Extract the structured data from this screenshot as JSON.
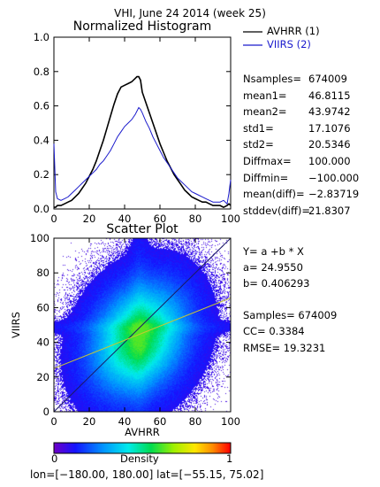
{
  "header": {
    "title": "VHI,  June 24 2014 (week 25)"
  },
  "colors": {
    "avhrr": "#000000",
    "viirs": "#1a1acc",
    "axis": "#000000"
  },
  "chart_data": [
    {
      "type": "line",
      "title": "Normalized Histogram",
      "xlim": [
        0,
        100
      ],
      "ylim": [
        0.0,
        1.0
      ],
      "x_ticks": [
        "0",
        "20",
        "40",
        "60",
        "80",
        "100"
      ],
      "y_ticks": [
        "0.0",
        "0.2",
        "0.4",
        "0.6",
        "0.8",
        "1.0"
      ],
      "x": [
        0,
        1,
        2,
        4,
        6,
        8,
        10,
        12,
        14,
        16,
        18,
        20,
        22,
        24,
        26,
        28,
        30,
        32,
        34,
        36,
        38,
        40,
        42,
        44,
        46,
        47,
        48,
        49,
        50,
        52,
        54,
        56,
        58,
        60,
        62,
        64,
        66,
        68,
        70,
        72,
        74,
        76,
        78,
        80,
        82,
        84,
        86,
        88,
        90,
        92,
        94,
        96,
        98,
        99,
        100
      ],
      "series": [
        {
          "name": "AVHRR (1)",
          "color": "#000000",
          "values": [
            0.01,
            0.01,
            0.02,
            0.02,
            0.03,
            0.04,
            0.05,
            0.07,
            0.09,
            0.12,
            0.15,
            0.19,
            0.23,
            0.28,
            0.34,
            0.4,
            0.47,
            0.54,
            0.61,
            0.67,
            0.71,
            0.72,
            0.73,
            0.74,
            0.76,
            0.77,
            0.77,
            0.75,
            0.68,
            0.62,
            0.56,
            0.5,
            0.44,
            0.38,
            0.33,
            0.28,
            0.24,
            0.2,
            0.17,
            0.14,
            0.11,
            0.09,
            0.07,
            0.06,
            0.05,
            0.04,
            0.04,
            0.03,
            0.02,
            0.02,
            0.02,
            0.01,
            0.02,
            0.03,
            0.02
          ]
        },
        {
          "name": "VIIRS (2)",
          "color": "#1a1acc",
          "values": [
            0.38,
            0.1,
            0.06,
            0.05,
            0.06,
            0.07,
            0.09,
            0.11,
            0.13,
            0.15,
            0.17,
            0.19,
            0.21,
            0.23,
            0.26,
            0.28,
            0.31,
            0.34,
            0.38,
            0.42,
            0.45,
            0.48,
            0.5,
            0.52,
            0.55,
            0.57,
            0.59,
            0.58,
            0.56,
            0.51,
            0.47,
            0.42,
            0.38,
            0.34,
            0.3,
            0.27,
            0.24,
            0.21,
            0.18,
            0.16,
            0.14,
            0.12,
            0.1,
            0.09,
            0.08,
            0.07,
            0.06,
            0.05,
            0.04,
            0.04,
            0.04,
            0.05,
            0.03,
            0.09,
            0.17
          ]
        }
      ],
      "legend_position": "right"
    },
    {
      "type": "heatmap",
      "title": "Scatter Plot",
      "xlabel": "AVHRR",
      "ylabel": "VIIRS",
      "xlim": [
        0,
        100
      ],
      "ylim": [
        0,
        100
      ],
      "x_ticks": [
        "0",
        "20",
        "40",
        "60",
        "80",
        "100"
      ],
      "y_ticks": [
        "0",
        "20",
        "40",
        "60",
        "80",
        "100"
      ],
      "density_center": [
        48,
        42
      ],
      "density_spread": [
        17,
        20
      ],
      "fit_line": {
        "a": 24.955,
        "b": 0.406293
      },
      "colorbar": {
        "label": "Density",
        "min_label": "0",
        "max_label": "1",
        "colormap": "rainbow"
      }
    }
  ],
  "hist_stats": [
    {
      "label": "Nsamples=",
      "value": "674009"
    },
    {
      "label": "mean1=",
      "value": "46.8115"
    },
    {
      "label": "mean2=",
      "value": "43.9742"
    },
    {
      "label": "std1=",
      "value": "17.1076"
    },
    {
      "label": "std2=",
      "value": "20.5346"
    },
    {
      "label": "Diffmax=",
      "value": "100.000"
    },
    {
      "label": "Diffmin=",
      "value": "−100.000"
    },
    {
      "label": "mean(diff)=",
      "value": "−2.83719"
    },
    {
      "label": "stddev(diff)=",
      "value": "21.8307"
    }
  ],
  "regression": {
    "equation": "Y= a +b * X",
    "a_line": "a= 24.9550",
    "b_line": "b= 0.406293",
    "samples_line": "Samples= 674009",
    "cc_line": "CC=   0.3384",
    "rmse_line": "RMSE= 19.3231"
  },
  "footer": {
    "lon_lat": "lon=[−180.00, 180.00] lat=[−55.15, 75.02]"
  }
}
